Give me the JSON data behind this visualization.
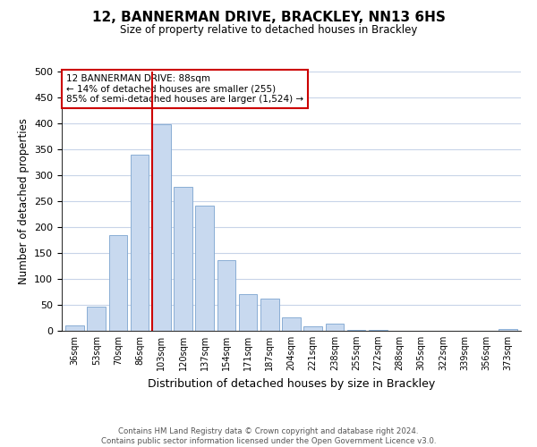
{
  "title": "12, BANNERMAN DRIVE, BRACKLEY, NN13 6HS",
  "subtitle": "Size of property relative to detached houses in Brackley",
  "xlabel": "Distribution of detached houses by size in Brackley",
  "ylabel": "Number of detached properties",
  "bar_labels": [
    "36sqm",
    "53sqm",
    "70sqm",
    "86sqm",
    "103sqm",
    "120sqm",
    "137sqm",
    "154sqm",
    "171sqm",
    "187sqm",
    "204sqm",
    "221sqm",
    "238sqm",
    "255sqm",
    "272sqm",
    "288sqm",
    "305sqm",
    "322sqm",
    "339sqm",
    "356sqm",
    "373sqm"
  ],
  "bar_values": [
    10,
    47,
    185,
    340,
    398,
    277,
    242,
    137,
    70,
    62,
    26,
    8,
    13,
    1,
    1,
    0,
    0,
    0,
    0,
    0,
    3
  ],
  "bar_color": "#c8d9ef",
  "bar_edge_color": "#8aaed4",
  "ylim": [
    0,
    500
  ],
  "yticks": [
    0,
    50,
    100,
    150,
    200,
    250,
    300,
    350,
    400,
    450,
    500
  ],
  "property_line_color": "#cc0000",
  "annotation_title": "12 BANNERMAN DRIVE: 88sqm",
  "annotation_line1": "← 14% of detached houses are smaller (255)",
  "annotation_line2": "85% of semi-detached houses are larger (1,524) →",
  "annotation_box_color": "#ffffff",
  "annotation_box_edge": "#cc0000",
  "footer_line1": "Contains HM Land Registry data © Crown copyright and database right 2024.",
  "footer_line2": "Contains public sector information licensed under the Open Government Licence v3.0.",
  "background_color": "#ffffff",
  "grid_color": "#c8d4e8"
}
